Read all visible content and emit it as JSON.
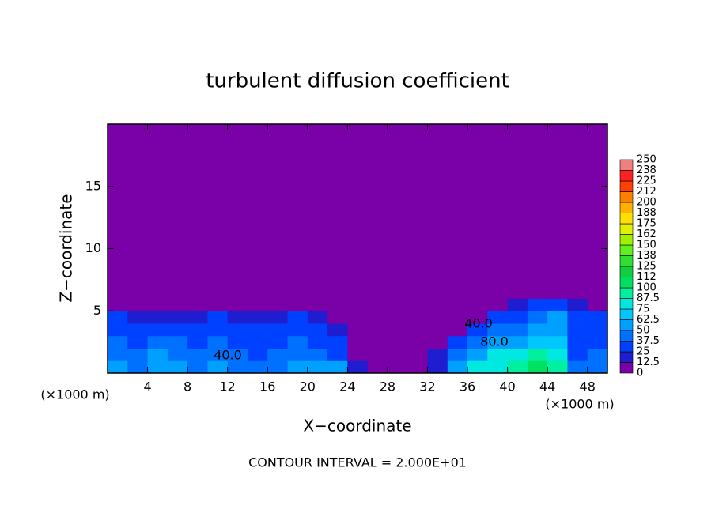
{
  "chart_data": {
    "type": "contour",
    "title": "turbulent diffusion coefficient",
    "x_label": "X−coordinate",
    "y_label": "Z−coordinate",
    "x_unit_label": "(×1000 m)",
    "footer": "CONTOUR INTERVAL = 2.000E+01",
    "contour_labels": [
      "40.0",
      "80.0",
      "40.0"
    ],
    "xlim": [
      0,
      50
    ],
    "ylim": [
      0,
      20
    ],
    "xticks": [
      4,
      8,
      12,
      16,
      20,
      24,
      28,
      32,
      36,
      40,
      44,
      48
    ],
    "yticks": [
      5,
      10,
      15
    ],
    "x_edges": [
      0,
      2,
      4,
      6,
      8,
      10,
      12,
      14,
      16,
      18,
      20,
      22,
      24,
      26,
      28,
      30,
      32,
      34,
      36,
      38,
      40,
      42,
      44,
      46,
      48,
      50
    ],
    "z_edges": [
      0,
      1,
      2,
      3,
      4,
      5,
      6,
      7
    ],
    "z_rows": [
      [
        50,
        45,
        55,
        50,
        45,
        50,
        45,
        40,
        45,
        50,
        55,
        60,
        20,
        10,
        5,
        10,
        20,
        60,
        75,
        85,
        95,
        100,
        95,
        40,
        45
      ],
      [
        45,
        40,
        50,
        45,
        40,
        45,
        40,
        35,
        40,
        45,
        40,
        30,
        10,
        5,
        0,
        5,
        15,
        40,
        60,
        75,
        85,
        90,
        85,
        35,
        40
      ],
      [
        40,
        35,
        40,
        40,
        35,
        40,
        35,
        30,
        35,
        40,
        35,
        25,
        5,
        0,
        0,
        0,
        10,
        30,
        45,
        55,
        60,
        65,
        70,
        30,
        35
      ],
      [
        35,
        30,
        35,
        30,
        30,
        35,
        30,
        25,
        30,
        35,
        30,
        15,
        0,
        0,
        0,
        0,
        0,
        10,
        35,
        40,
        45,
        50,
        60,
        30,
        30
      ],
      [
        25,
        20,
        20,
        15,
        20,
        25,
        20,
        15,
        20,
        25,
        15,
        5,
        0,
        0,
        0,
        0,
        0,
        0,
        5,
        30,
        35,
        40,
        50,
        35,
        25
      ],
      [
        0,
        0,
        0,
        0,
        0,
        0,
        0,
        0,
        0,
        0,
        0,
        0,
        0,
        0,
        0,
        0,
        0,
        0,
        0,
        10,
        20,
        25,
        30,
        20,
        0
      ],
      [
        0,
        0,
        0,
        0,
        0,
        0,
        0,
        0,
        0,
        0,
        0,
        0,
        0,
        0,
        0,
        0,
        0,
        0,
        0,
        0,
        5,
        10,
        5,
        0,
        0
      ]
    ],
    "colorbar_ticks": [
      0,
      12.5,
      25,
      37.5,
      50,
      62.5,
      75,
      87.5,
      100,
      112,
      125,
      138,
      150,
      162,
      175,
      188,
      200,
      212,
      225,
      238,
      250
    ],
    "colors": [
      "#7a00a8",
      "#1e1ed0",
      "#0040ff",
      "#0070ff",
      "#00a0ff",
      "#00c8ff",
      "#00e8e0",
      "#00f0a0",
      "#00e060",
      "#10d040",
      "#30e030",
      "#60f020",
      "#a0f000",
      "#e0f000",
      "#ffe000",
      "#ffb000",
      "#ff8000",
      "#ff4000",
      "#ff2020",
      "#f08080"
    ]
  }
}
